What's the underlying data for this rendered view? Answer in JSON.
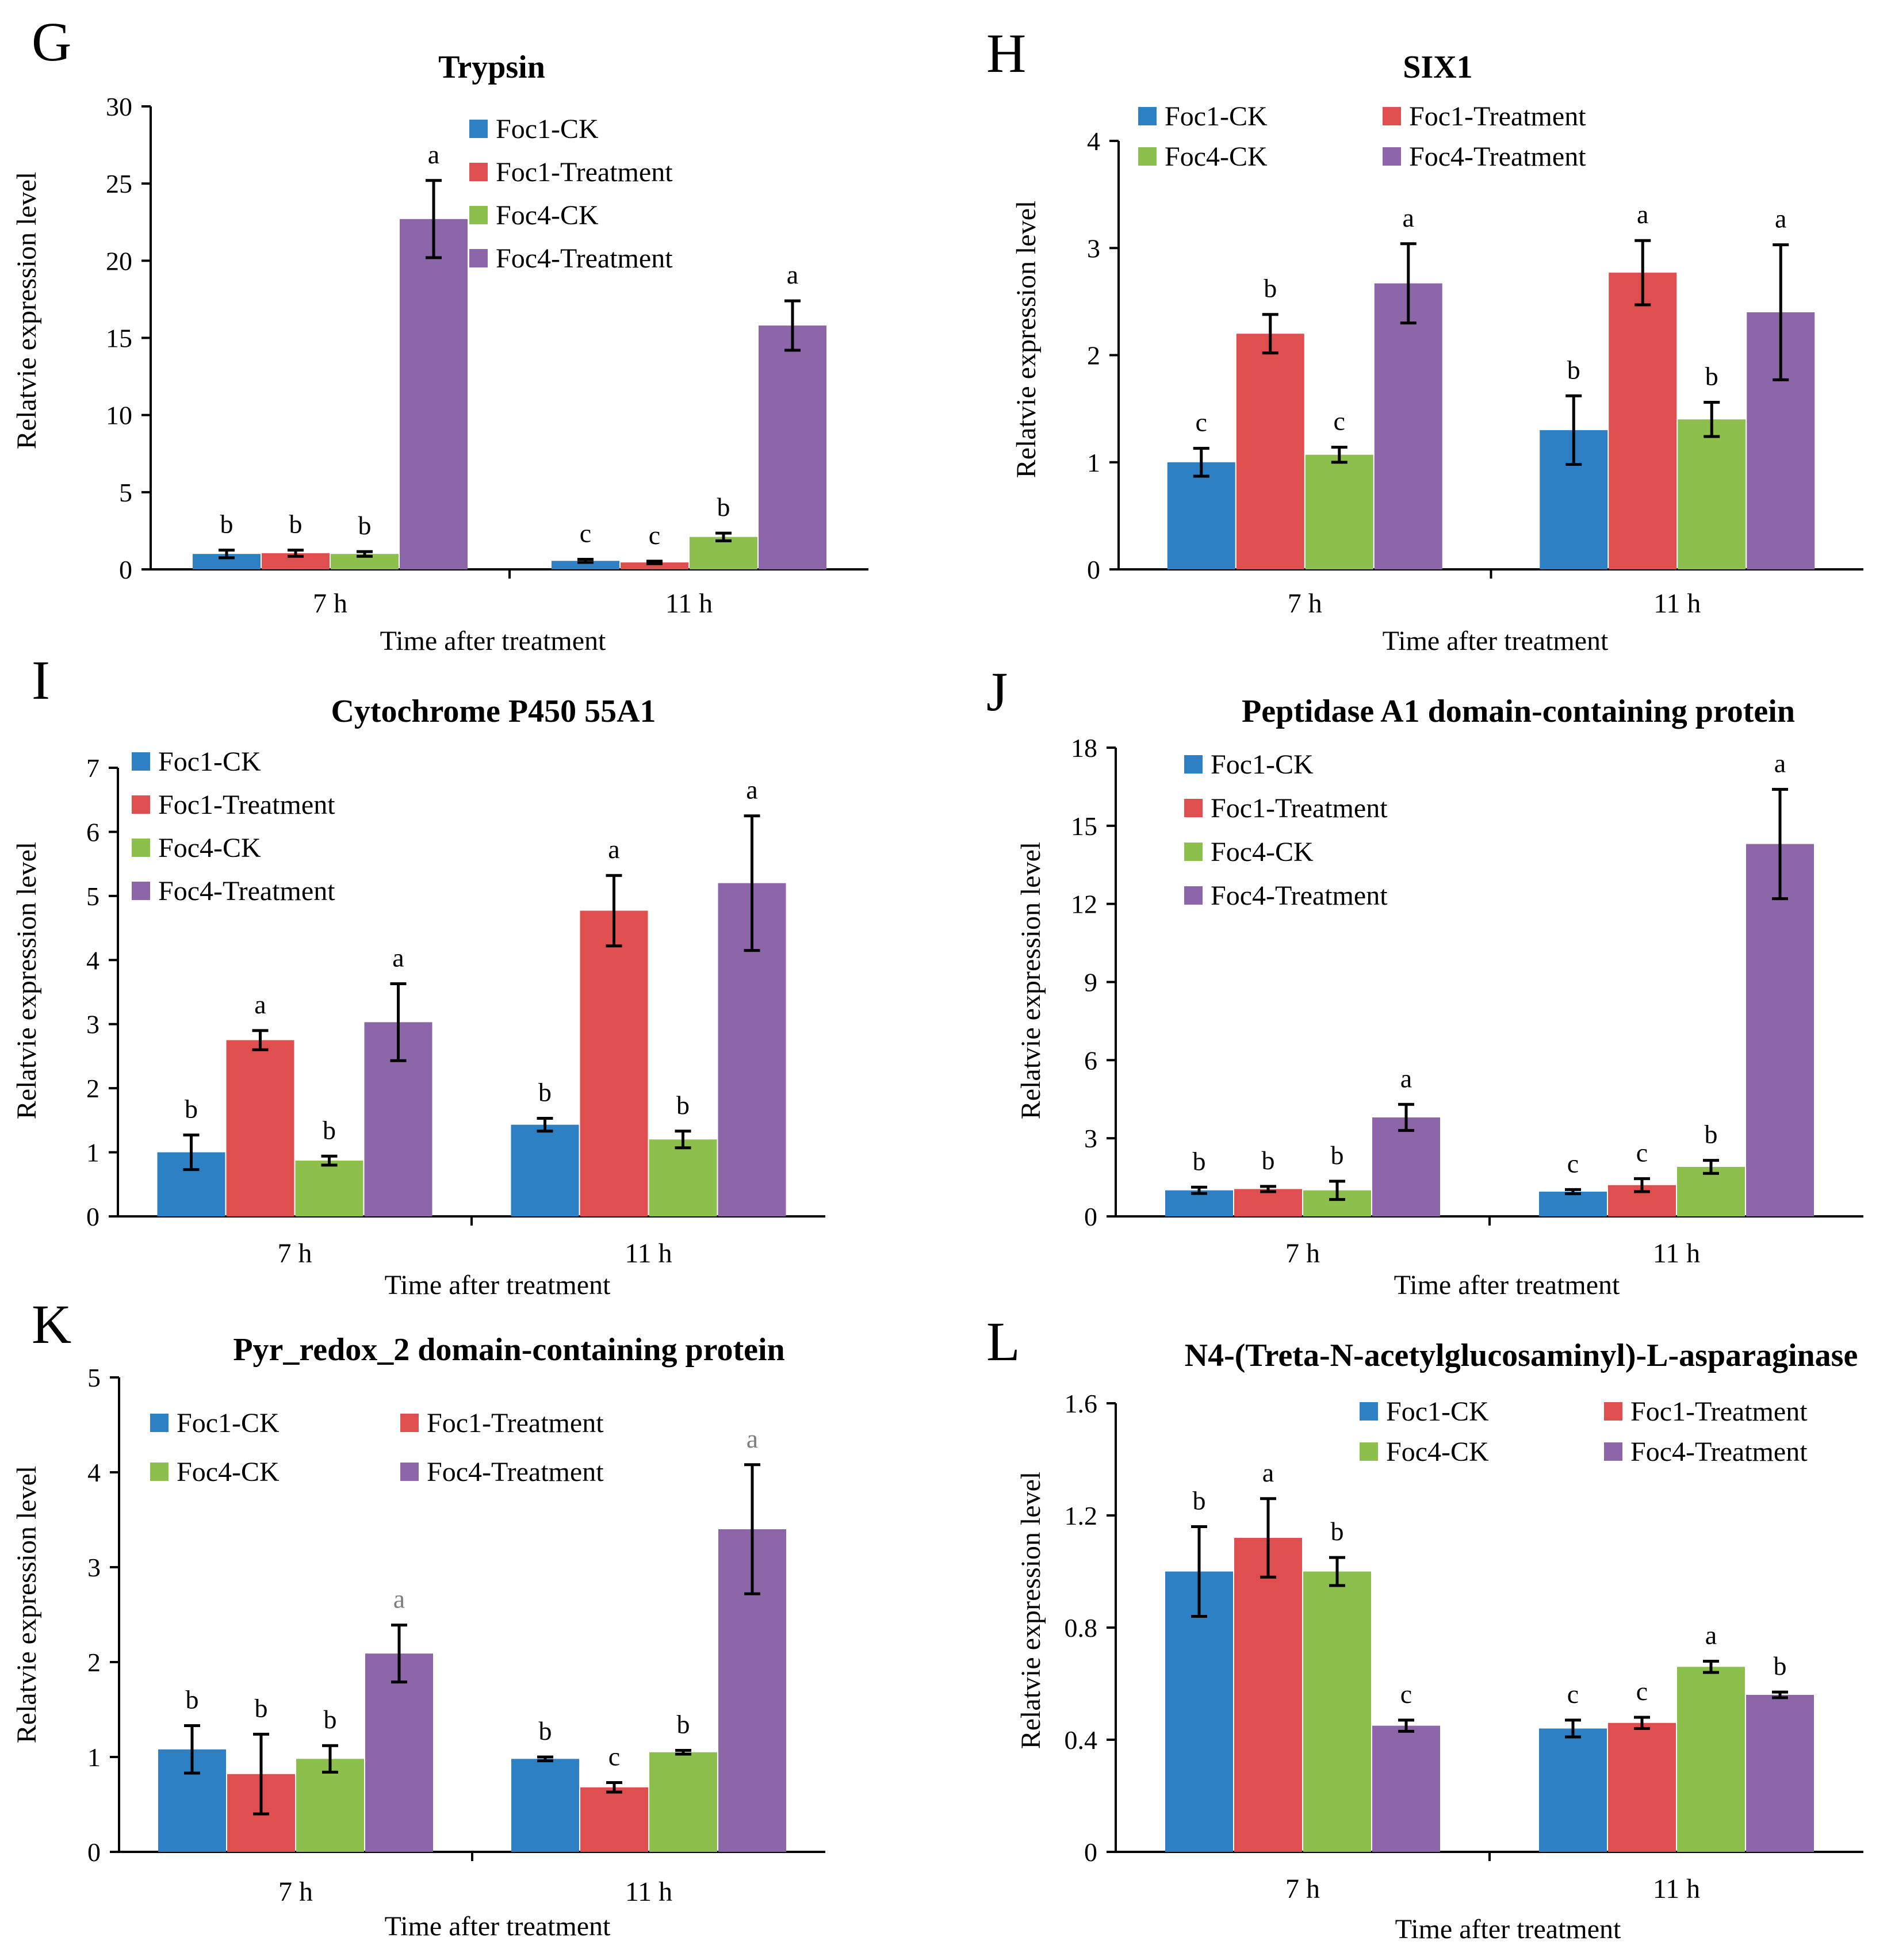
{
  "figure": {
    "series_names": [
      "Foc1-CK",
      "Foc1-Treatment",
      "Foc4-CK",
      "Foc4-Treatment"
    ],
    "colors": {
      "Foc1-CK": "#2e80c4",
      "Foc1-Treatment": "#e04f4f",
      "Foc4-CK": "#8dbf4d",
      "Foc4-Treatment": "#8c66a8",
      "sig_default": "#000000",
      "sig_muted": "#7f7f7f"
    }
  },
  "chart_data": [
    {
      "panel": "G",
      "type": "bar",
      "title": "Trypsin",
      "xlabel": "Time after treatment",
      "ylabel": "Relatvie expression level",
      "categories": [
        "7 h",
        "11 h"
      ],
      "ylim": [
        0,
        30
      ],
      "yticks": [
        "0",
        "5",
        "10",
        "15",
        "20",
        "25",
        "30"
      ],
      "legend": "top-center-vertical",
      "series": [
        {
          "name": "Foc1-CK",
          "values": [
            1.0,
            0.55
          ],
          "errors": [
            0.25,
            0.1
          ],
          "sig": [
            "b",
            "c"
          ]
        },
        {
          "name": "Foc1-Treatment",
          "values": [
            1.05,
            0.45
          ],
          "errors": [
            0.2,
            0.08
          ],
          "sig": [
            "b",
            "c"
          ]
        },
        {
          "name": "Foc4-CK",
          "values": [
            1.0,
            2.1
          ],
          "errors": [
            0.15,
            0.25
          ],
          "sig": [
            "b",
            "b"
          ]
        },
        {
          "name": "Foc4-Treatment",
          "values": [
            22.7,
            15.8
          ],
          "errors": [
            2.5,
            1.6
          ],
          "sig": [
            "a",
            "a"
          ]
        }
      ]
    },
    {
      "panel": "H",
      "type": "bar",
      "title": "SIX1",
      "xlabel": "Time after treatment",
      "ylabel": "Relatvie expression level",
      "categories": [
        "7 h",
        "11 h"
      ],
      "ylim": [
        0,
        4
      ],
      "yticks": [
        "0",
        "1",
        "2",
        "3",
        "4"
      ],
      "legend": "top-two-column",
      "series": [
        {
          "name": "Foc1-CK",
          "values": [
            1.0,
            1.3
          ],
          "errors": [
            0.13,
            0.32
          ],
          "sig": [
            "c",
            "b"
          ]
        },
        {
          "name": "Foc1-Treatment",
          "values": [
            2.2,
            2.77
          ],
          "errors": [
            0.18,
            0.3
          ],
          "sig": [
            "b",
            "a"
          ]
        },
        {
          "name": "Foc4-CK",
          "values": [
            1.07,
            1.4
          ],
          "errors": [
            0.07,
            0.16
          ],
          "sig": [
            "c",
            "b"
          ]
        },
        {
          "name": "Foc4-Treatment",
          "values": [
            2.67,
            2.4
          ],
          "errors": [
            0.37,
            0.63
          ],
          "sig": [
            "a",
            "a"
          ]
        }
      ]
    },
    {
      "panel": "I",
      "type": "bar",
      "title": "Cytochrome P450 55A1",
      "xlabel": "Time after treatment",
      "ylabel": "Relatvie expression level",
      "categories": [
        "7 h",
        "11 h"
      ],
      "ylim": [
        0,
        7
      ],
      "yticks": [
        "0",
        "1",
        "2",
        "3",
        "4",
        "5",
        "6",
        "7"
      ],
      "legend": "top-left-vertical",
      "series": [
        {
          "name": "Foc1-CK",
          "values": [
            1.0,
            1.43
          ],
          "errors": [
            0.27,
            0.1
          ],
          "sig": [
            "b",
            "b"
          ]
        },
        {
          "name": "Foc1-Treatment",
          "values": [
            2.75,
            4.77
          ],
          "errors": [
            0.15,
            0.55
          ],
          "sig": [
            "a",
            "a"
          ]
        },
        {
          "name": "Foc4-CK",
          "values": [
            0.87,
            1.2
          ],
          "errors": [
            0.07,
            0.13
          ],
          "sig": [
            "b",
            "b"
          ]
        },
        {
          "name": "Foc4-Treatment",
          "values": [
            3.03,
            5.2
          ],
          "errors": [
            0.6,
            1.05
          ],
          "sig": [
            "a",
            "a"
          ]
        }
      ]
    },
    {
      "panel": "J",
      "type": "bar",
      "title": "Peptidase A1 domain-containing protein",
      "xlabel": "Time after treatment",
      "ylabel": "Relatvie expression level",
      "categories": [
        "7 h",
        "11 h"
      ],
      "ylim": [
        0,
        18
      ],
      "yticks": [
        "0",
        "3",
        "6",
        "9",
        "12",
        "15",
        "18"
      ],
      "legend": "top-left-vertical",
      "series": [
        {
          "name": "Foc1-CK",
          "values": [
            1.0,
            0.95
          ],
          "errors": [
            0.12,
            0.08
          ],
          "sig": [
            "b",
            "c"
          ]
        },
        {
          "name": "Foc1-Treatment",
          "values": [
            1.05,
            1.2
          ],
          "errors": [
            0.1,
            0.25
          ],
          "sig": [
            "b",
            "c"
          ]
        },
        {
          "name": "Foc4-CK",
          "values": [
            1.0,
            1.9
          ],
          "errors": [
            0.35,
            0.25
          ],
          "sig": [
            "b",
            "b"
          ]
        },
        {
          "name": "Foc4-Treatment",
          "values": [
            3.8,
            14.3
          ],
          "errors": [
            0.5,
            2.1
          ],
          "sig": [
            "a",
            "a"
          ]
        }
      ]
    },
    {
      "panel": "K",
      "type": "bar",
      "title": "Pyr_redox_2 domain-containing protein",
      "xlabel": "Time after treatment",
      "ylabel": "Relatvie expression level",
      "categories": [
        "7 h",
        "11 h"
      ],
      "ylim": [
        0,
        5
      ],
      "yticks": [
        "0",
        "1",
        "2",
        "3",
        "4",
        "5"
      ],
      "legend": "top-two-column",
      "series": [
        {
          "name": "Foc1-CK",
          "values": [
            1.08,
            0.98
          ],
          "errors": [
            0.25,
            0.02
          ],
          "sig": [
            "b",
            "b"
          ]
        },
        {
          "name": "Foc1-Treatment",
          "values": [
            0.82,
            0.68
          ],
          "errors": [
            0.42,
            0.05
          ],
          "sig": [
            "b",
            "c"
          ]
        },
        {
          "name": "Foc4-CK",
          "values": [
            0.98,
            1.05
          ],
          "errors": [
            0.14,
            0.02
          ],
          "sig": [
            "b",
            "b"
          ]
        },
        {
          "name": "Foc4-Treatment",
          "values": [
            2.09,
            3.4
          ],
          "errors": [
            0.3,
            0.68
          ],
          "sig": [
            "a",
            "a"
          ],
          "sig_muted": true
        }
      ]
    },
    {
      "panel": "L",
      "type": "bar",
      "title": "N4-(Treta-N-acetylglucosaminyl)-L-asparaginase",
      "xlabel": "Time after treatment",
      "ylabel": "Relatvie expression level",
      "categories": [
        "7 h",
        "11 h"
      ],
      "ylim": [
        0,
        1.6
      ],
      "yticks": [
        "0",
        "0.4",
        "0.8",
        "1.2",
        "1.6"
      ],
      "legend": "top-right-two-column",
      "series": [
        {
          "name": "Foc1-CK",
          "values": [
            1.0,
            0.44
          ],
          "errors": [
            0.16,
            0.03
          ],
          "sig": [
            "b",
            "c"
          ]
        },
        {
          "name": "Foc1-Treatment",
          "values": [
            1.12,
            0.46
          ],
          "errors": [
            0.14,
            0.02
          ],
          "sig": [
            "a",
            "c"
          ]
        },
        {
          "name": "Foc4-CK",
          "values": [
            1.0,
            0.66
          ],
          "errors": [
            0.05,
            0.02
          ],
          "sig": [
            "b",
            "a"
          ]
        },
        {
          "name": "Foc4-Treatment",
          "values": [
            0.45,
            0.56
          ],
          "errors": [
            0.02,
            0.01
          ],
          "sig": [
            "c",
            "b"
          ]
        }
      ]
    }
  ]
}
